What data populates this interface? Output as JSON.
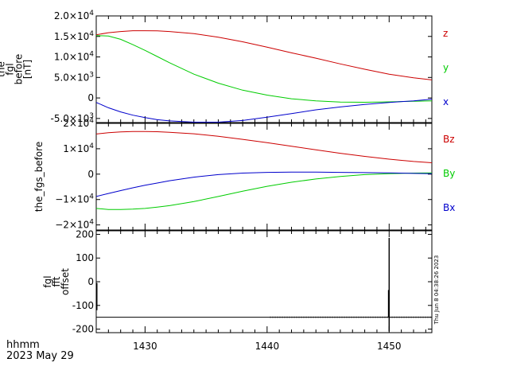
{
  "chart_data": [
    {
      "type": "line",
      "ylabel_lines": [
        "the",
        "fgl",
        "before",
        "[nT]"
      ],
      "ylim": [
        -6000,
        20000
      ],
      "yticks": [
        {
          "v": 20000,
          "mant": "2.0",
          "exp": "4"
        },
        {
          "v": 15000,
          "mant": "1.5",
          "exp": "4"
        },
        {
          "v": 10000,
          "mant": "1.0",
          "exp": "4"
        },
        {
          "v": 5000,
          "mant": "5.0",
          "exp": "3"
        },
        {
          "v": 0,
          "plain": "0"
        },
        {
          "v": -5000,
          "mant": "-5.0",
          "exp": "3"
        }
      ],
      "series": [
        {
          "name": "z",
          "color": "#cc0000",
          "x": [
            1426,
            1427,
            1428,
            1429,
            1430,
            1431,
            1432,
            1434,
            1436,
            1438,
            1440,
            1442,
            1444,
            1446,
            1448,
            1450,
            1452,
            1453.5
          ],
          "y": [
            15400,
            15900,
            16200,
            16400,
            16400,
            16350,
            16200,
            15700,
            14800,
            13700,
            12400,
            11000,
            9700,
            8300,
            7000,
            5800,
            4900,
            4400
          ]
        },
        {
          "name": "y",
          "color": "#00cc00",
          "x": [
            1426,
            1427,
            1428,
            1429,
            1430,
            1431,
            1432,
            1434,
            1436,
            1438,
            1440,
            1442,
            1444,
            1446,
            1448,
            1450,
            1452,
            1453.5
          ],
          "y": [
            15200,
            15100,
            14300,
            13000,
            11600,
            10100,
            8600,
            5800,
            3600,
            1900,
            700,
            -200,
            -700,
            -1000,
            -1050,
            -950,
            -800,
            -700
          ]
        },
        {
          "name": "x",
          "color": "#0000cc",
          "x": [
            1426,
            1427,
            1428,
            1429,
            1430,
            1431,
            1432,
            1434,
            1436,
            1438,
            1440,
            1442,
            1444,
            1446,
            1448,
            1450,
            1452,
            1453.5
          ],
          "y": [
            -1100,
            -2400,
            -3400,
            -4200,
            -4800,
            -5300,
            -5600,
            -5900,
            -5900,
            -5500,
            -4700,
            -3800,
            -2900,
            -2200,
            -1600,
            -1100,
            -700,
            -300
          ]
        }
      ]
    },
    {
      "type": "line",
      "ylabel_lines": [
        "the_fgs_before"
      ],
      "ylim": [
        -22000,
        20000
      ],
      "yticks": [
        {
          "v": 20000,
          "mant": "2",
          "exp": "4",
          "times": true
        },
        {
          "v": 10000,
          "mant": "1",
          "exp": "4",
          "times": true
        },
        {
          "v": 0,
          "plain": "0"
        },
        {
          "v": -10000,
          "mant": "−1",
          "exp": "4",
          "times": true
        },
        {
          "v": -20000,
          "mant": "−2",
          "exp": "4",
          "times": true
        }
      ],
      "series": [
        {
          "name": "Bz",
          "color": "#cc0000",
          "x": [
            1426,
            1427,
            1428,
            1429,
            1430,
            1431,
            1432,
            1434,
            1436,
            1438,
            1440,
            1442,
            1444,
            1446,
            1448,
            1450,
            1452,
            1453.5
          ],
          "y": [
            15800,
            16300,
            16600,
            16800,
            16800,
            16700,
            16500,
            15900,
            14900,
            13700,
            12400,
            11000,
            9600,
            8200,
            7000,
            5900,
            5000,
            4500
          ]
        },
        {
          "name": "By",
          "color": "#00cc00",
          "x": [
            1426,
            1427,
            1428,
            1429,
            1430,
            1431,
            1432,
            1434,
            1436,
            1438,
            1440,
            1442,
            1444,
            1446,
            1448,
            1450,
            1452,
            1453.5
          ],
          "y": [
            -13500,
            -13900,
            -13900,
            -13800,
            -13500,
            -13000,
            -12400,
            -10800,
            -8800,
            -6700,
            -4800,
            -3200,
            -1900,
            -900,
            -200,
            200,
            400,
            500
          ]
        },
        {
          "name": "Bx",
          "color": "#0000cc",
          "x": [
            1426,
            1427,
            1428,
            1429,
            1430,
            1431,
            1432,
            1434,
            1436,
            1438,
            1440,
            1442,
            1444,
            1446,
            1448,
            1450,
            1452,
            1453.5
          ],
          "y": [
            -8800,
            -7600,
            -6500,
            -5400,
            -4400,
            -3500,
            -2600,
            -1200,
            -200,
            400,
            700,
            800,
            800,
            700,
            600,
            500,
            300,
            200
          ]
        }
      ]
    },
    {
      "type": "line",
      "ylabel_lines": [
        "fgl",
        "fft",
        "offset"
      ],
      "ylim": [
        -215,
        215
      ],
      "yticks": [
        {
          "v": 200,
          "plain": "200"
        },
        {
          "v": 100,
          "plain": "100"
        },
        {
          "v": 0,
          "plain": "0"
        },
        {
          "v": -100,
          "plain": "-100"
        },
        {
          "v": -200,
          "plain": "-200"
        }
      ],
      "baseline": -150,
      "spikes": [
        {
          "x": 1450,
          "y0": -210,
          "y1": 185
        },
        {
          "x": 1449.95,
          "y0": -150,
          "y1": -35
        }
      ],
      "side_label": "Thu Jun  8 04:38:26 2023"
    }
  ],
  "xaxis": {
    "xlim": [
      1426,
      1453.5
    ],
    "ticks": [
      1430,
      1440,
      1450
    ],
    "tick_labels": [
      "1430",
      "1440",
      "1450"
    ]
  },
  "footer": {
    "time_format": "hhmm",
    "date": "2023 May 29"
  },
  "colors": {
    "axes": "#000000",
    "background": "#ffffff"
  }
}
